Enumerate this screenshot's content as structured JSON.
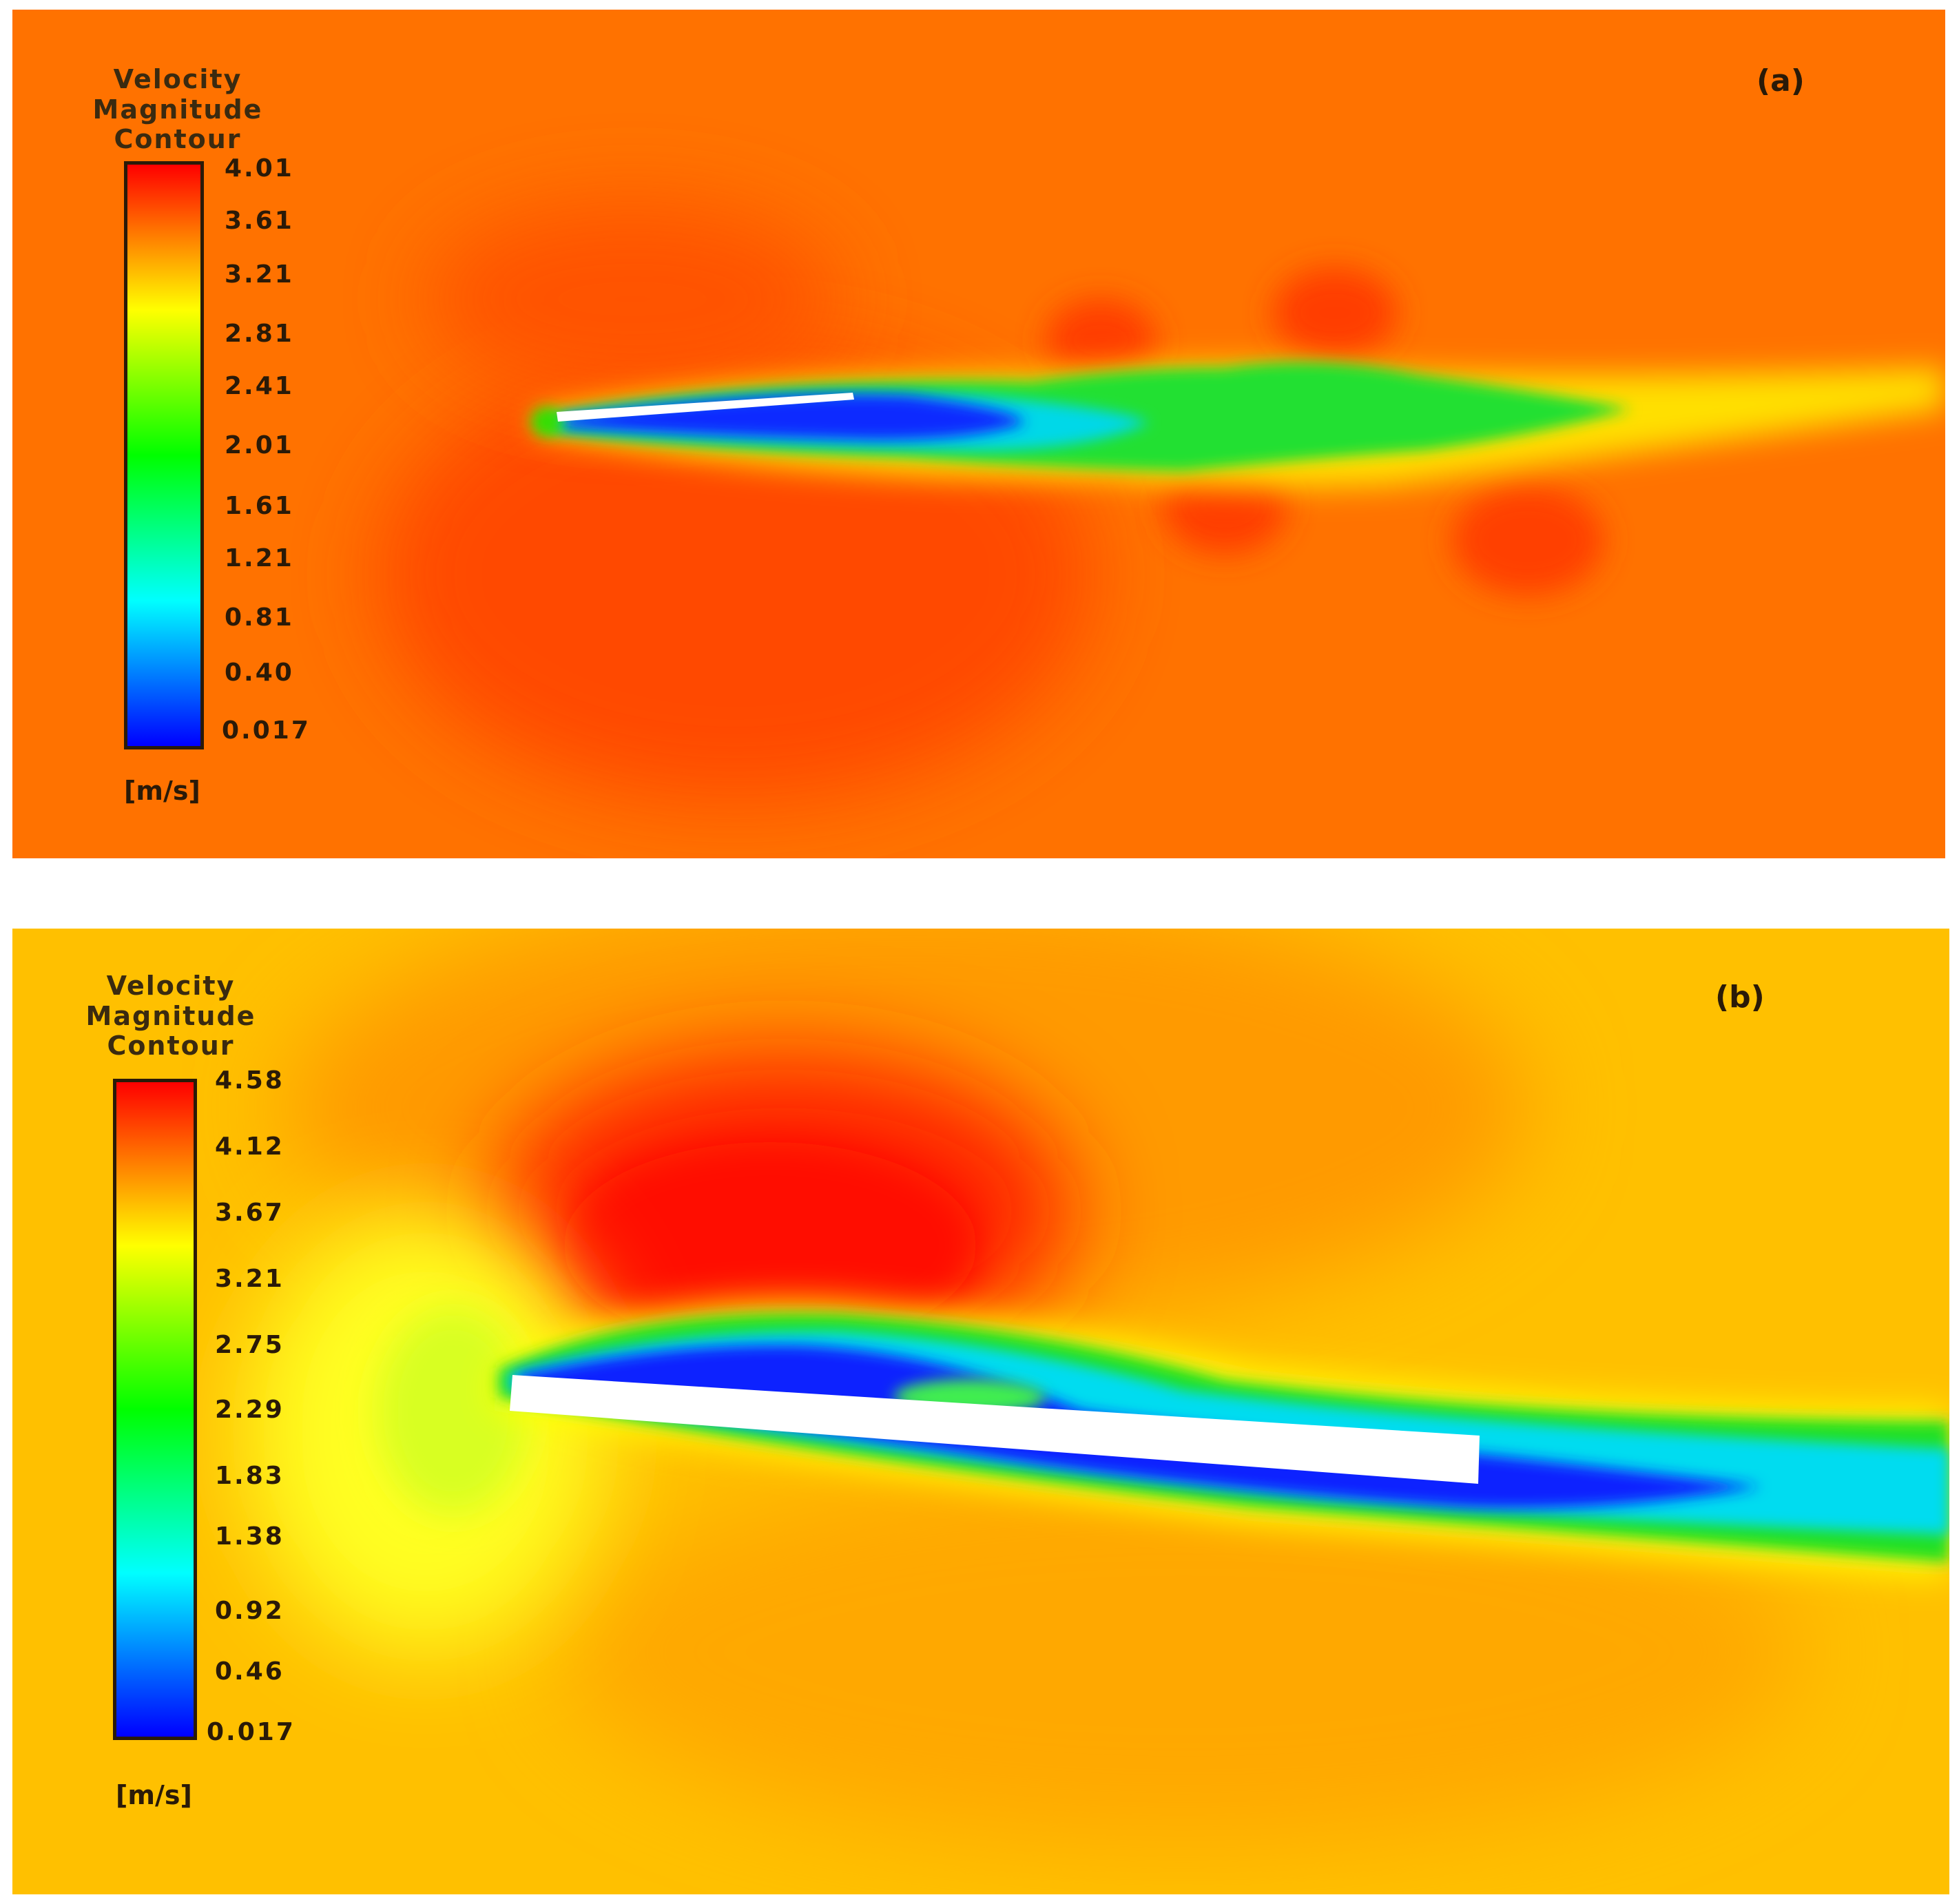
{
  "panels": [
    {
      "label": "(a)",
      "legend_title_line1": "Velocity Magnitude",
      "legend_title_line2": "Contour",
      "ticks": [
        "4.01",
        "3.61",
        "3.21",
        "2.81",
        "2.41",
        "2.01",
        "1.61",
        "1.21",
        "0.81",
        "0.40",
        "0.017"
      ],
      "unit": "[m/s]",
      "range": [
        0.017,
        4.01
      ],
      "background_color": "#ff6a00"
    },
    {
      "label": "(b)",
      "legend_title_line1": "Velocity Magnitude",
      "legend_title_line2": "Contour",
      "ticks": [
        "4.58",
        "4.12",
        "3.67",
        "3.21",
        "2.75",
        "2.29",
        "1.83",
        "1.38",
        "0.92",
        "0.46",
        "0.017"
      ],
      "unit": "[m/s]",
      "range": [
        0.017,
        4.58
      ],
      "background_color": "#ffc400"
    }
  ],
  "colormap": [
    "#0000ff",
    "#00ffff",
    "#00ff00",
    "#ffff00",
    "#ff0000"
  ]
}
